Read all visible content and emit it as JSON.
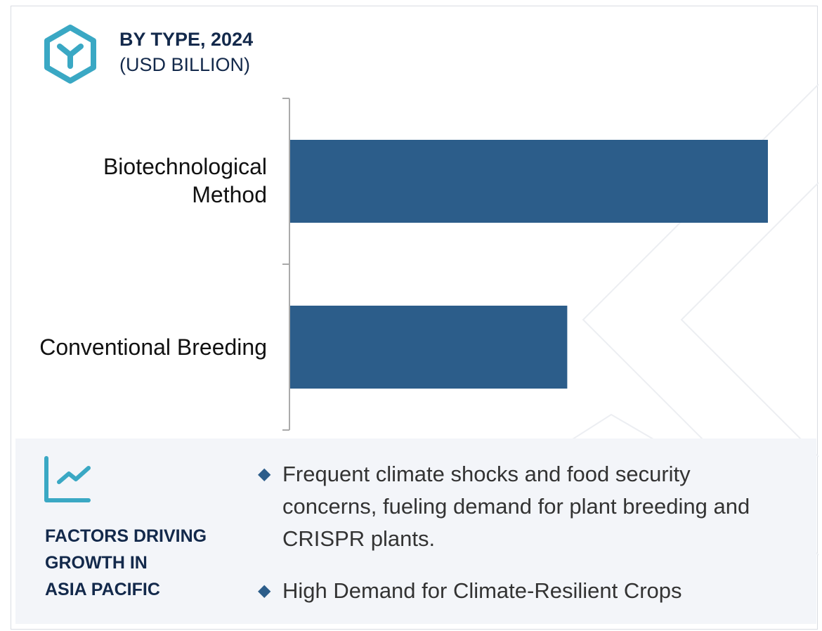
{
  "header": {
    "title": "BY TYPE, 2024",
    "subtitle": "(USD BILLION)",
    "icon": "hexagon-y-icon"
  },
  "colors": {
    "bar": "#2c5d8a",
    "accent": "#3aa8c4",
    "heading": "#13294b",
    "panel": "#f3f5f9"
  },
  "chart_data": {
    "type": "bar",
    "orientation": "horizontal",
    "title": "BY TYPE, 2024",
    "subtitle": "(USD BILLION)",
    "categories": [
      "Biotechnological\nMethod",
      "Conventional Breeding"
    ],
    "values": [
      100,
      58
    ],
    "value_note": "relative; no axis values printed",
    "xlim": [
      0,
      100
    ],
    "grid": false,
    "legend": "none"
  },
  "factors": {
    "icon": "trend-chart-icon",
    "heading": "FACTORS DRIVING\nGROWTH IN\nASIA PACIFIC",
    "bullets": [
      "Frequent climate shocks and food security concerns, fueling demand for plant breeding and CRISPR plants.",
      "High Demand for Climate-Resilient Crops"
    ]
  }
}
